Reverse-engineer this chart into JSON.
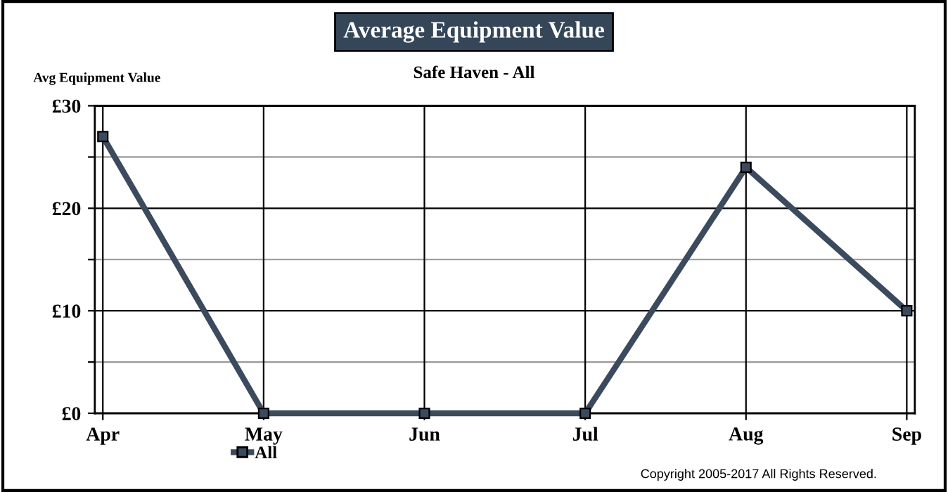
{
  "chart_data": {
    "type": "line",
    "title": "Average Equipment Value",
    "subtitle": "Safe Haven - All",
    "ylabel": "Avg Equipment Value",
    "categories": [
      "Apr",
      "May",
      "Jun",
      "Jul",
      "Aug",
      "Sep"
    ],
    "series": [
      {
        "name": "All",
        "color": "#3b4a5c",
        "values": [
          27,
          0,
          0,
          0,
          24,
          10
        ]
      }
    ],
    "ylim": [
      0,
      30
    ],
    "yticks": [
      {
        "value": 0,
        "label": "£0"
      },
      {
        "value": 5,
        "label": null
      },
      {
        "value": 10,
        "label": "£10"
      },
      {
        "value": 15,
        "label": null
      },
      {
        "value": 20,
        "label": "£20"
      },
      {
        "value": 25,
        "label": null
      },
      {
        "value": 30,
        "label": "£30"
      }
    ],
    "grid": true,
    "legend": "bottom left",
    "marker": "square",
    "line_style": "solid",
    "annotations": [
      "Copyright 2005-2017 All Rights Reserved."
    ]
  }
}
